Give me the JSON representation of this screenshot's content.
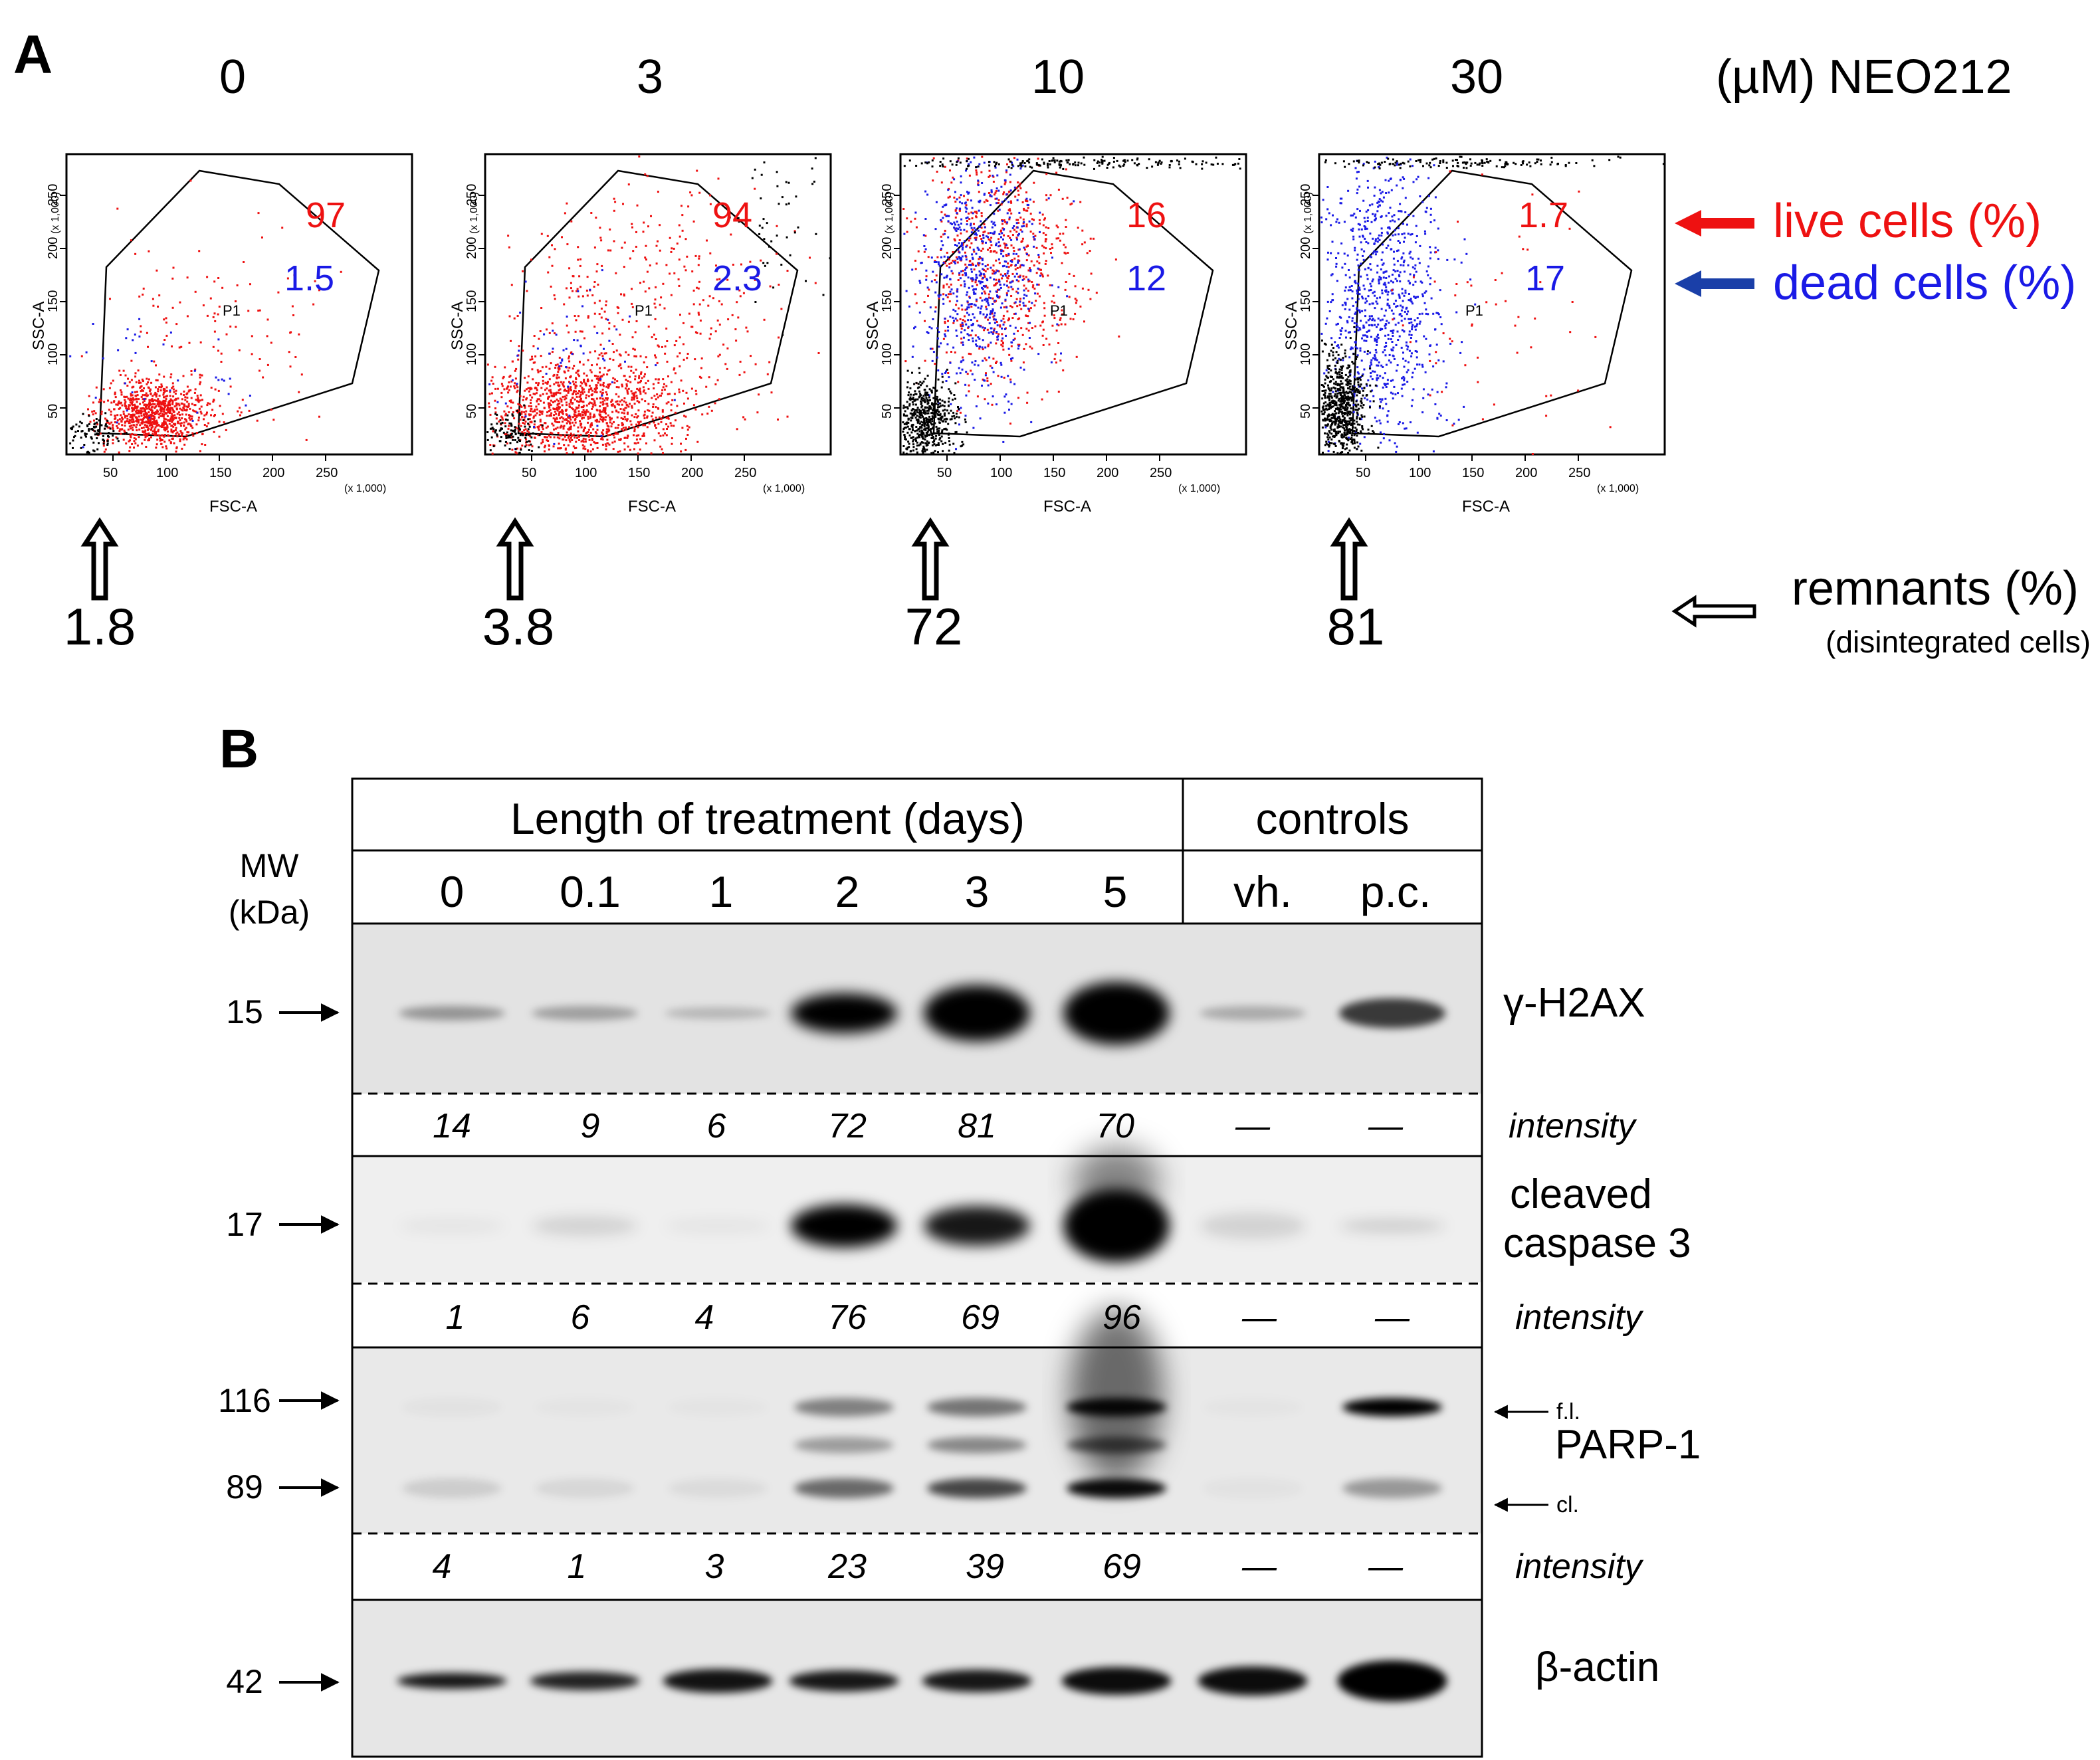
{
  "panel_a": {
    "label": "A",
    "concentration_unit_label": "(µM) NEO212",
    "plots": [
      {
        "concentration": "0",
        "live_pct": "97",
        "dead_pct": "1.5",
        "remnants_pct": "1.8"
      },
      {
        "concentration": "3",
        "live_pct": "94",
        "dead_pct": "2.3",
        "remnants_pct": "3.8"
      },
      {
        "concentration": "10",
        "live_pct": "16",
        "dead_pct": "12",
        "remnants_pct": "72"
      },
      {
        "concentration": "30",
        "live_pct": "1.7",
        "dead_pct": "17",
        "remnants_pct": "81"
      }
    ],
    "axes": {
      "x_label": "FSC-A",
      "y_label": "SSC-A",
      "scale_label": "(x 1,000)",
      "ticks": [
        "50",
        "100",
        "150",
        "200",
        "250"
      ],
      "gate_label": "P1"
    },
    "legend": {
      "live": "live cells (%)",
      "dead": "dead cells (%)",
      "remnants": "remnants (%)",
      "remnants_sub": "(disintegrated cells)"
    },
    "colors": {
      "live": "#ee1111",
      "dead": "#1a1ae6",
      "remnants": "#000000"
    }
  },
  "panel_b": {
    "label": "B",
    "header_treatment": "Length of treatment (days)",
    "header_controls": "controls",
    "mw_label_line1": "MW",
    "mw_label_line2": "(kDa)",
    "lanes": [
      "0",
      "0.1",
      "1",
      "2",
      "3",
      "5",
      "vh.",
      "p.c."
    ],
    "intensity_label": "intensity",
    "blots": [
      {
        "name": "γ-H2AX",
        "mw": [
          "15"
        ],
        "intensity": [
          "14",
          "9",
          "6",
          "72",
          "81",
          "70",
          "—",
          "—"
        ]
      },
      {
        "name_line1": "cleaved",
        "name_line2": "caspase 3",
        "mw": [
          "17"
        ],
        "intensity": [
          "1",
          "6",
          "4",
          "76",
          "69",
          "96",
          "—",
          "—"
        ]
      },
      {
        "name": "PARP-1",
        "mw": [
          "116",
          "89"
        ],
        "band_fl": "f.l.",
        "band_cl": "cl.",
        "intensity": [
          "4",
          "1",
          "3",
          "23",
          "39",
          "69",
          "—",
          "—"
        ]
      },
      {
        "name": "β-actin",
        "mw": [
          "42"
        ]
      }
    ]
  }
}
